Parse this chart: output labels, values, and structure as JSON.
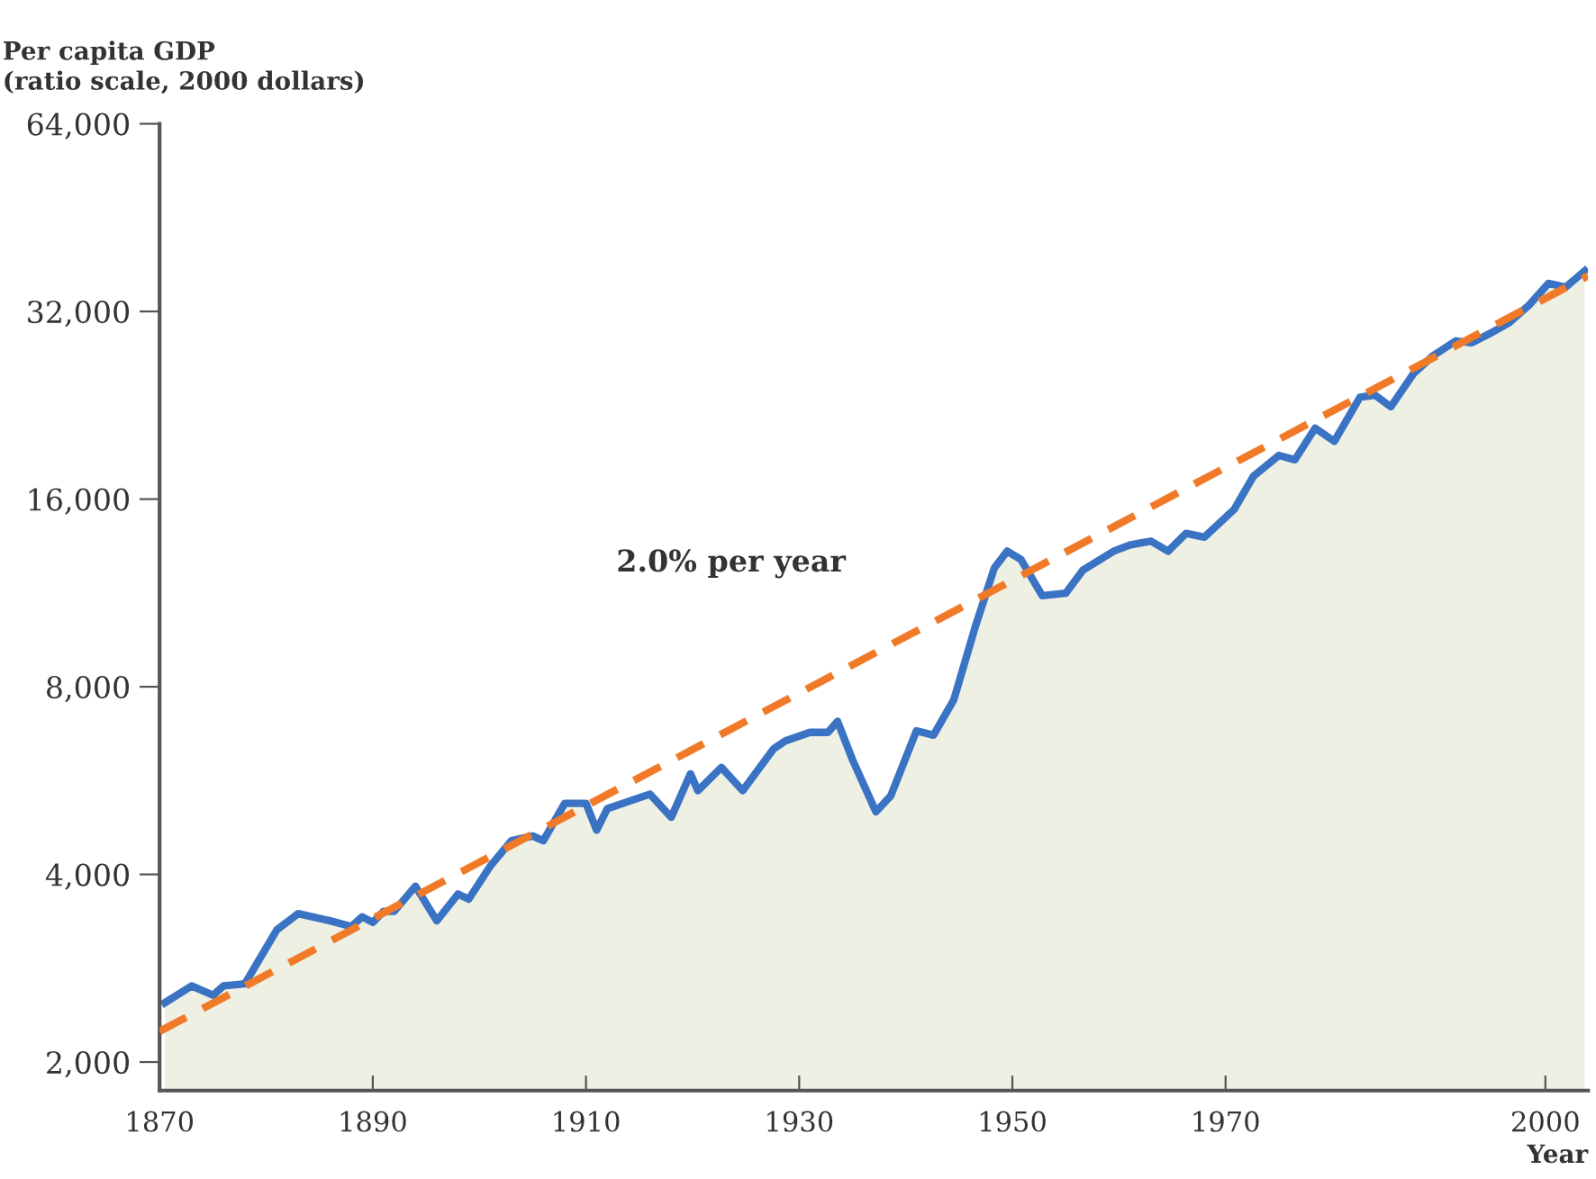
{
  "chart_data": {
    "type": "area",
    "ylabel": "Per capita GDP\n(ratio scale, 2000 dollars)",
    "xlabel": "Year",
    "log": "y",
    "xlim": [
      1870,
      2004
    ],
    "ylim": [
      1800,
      64000
    ],
    "xticks": [
      1870,
      1890,
      1910,
      1930,
      1950,
      1970,
      2000
    ],
    "yticks": [
      {
        "value": 2000,
        "label": "2,000"
      },
      {
        "value": 4000,
        "label": "4,000"
      },
      {
        "value": 8000,
        "label": "8,000"
      },
      {
        "value": 16000,
        "label": "16,000"
      },
      {
        "value": 32000,
        "label": "32,000"
      },
      {
        "value": 64000,
        "label": "64,000"
      }
    ],
    "annotations": [
      "2.0% per year"
    ],
    "series": [
      {
        "color": "#3a73c4",
        "x": [
          1870.5,
          1873,
          1875,
          1876,
          1878,
          1881,
          1883,
          1886,
          1888,
          1889,
          1890,
          1891,
          1892,
          1894,
          1896,
          1898,
          1899,
          1901,
          1903,
          1905,
          1906,
          1908,
          1910,
          1911,
          1912,
          1916,
          1918,
          1919.8,
          1920.5,
          1922.7,
          1924.7,
          1927.6,
          1928.7,
          1931,
          1932.7,
          1933.6,
          1935,
          1937.2,
          1938.6,
          1941,
          1942.6,
          1944.5,
          1946.5,
          1948.3,
          1949.5,
          1950.8,
          1952.8,
          1955,
          1956.6,
          1959.5,
          1961,
          1963,
          1964.6,
          1966.3,
          1968,
          1970.8,
          1972.6,
          1975,
          1976.5,
          1978.4,
          1980.2,
          1982.6,
          1984,
          1985.5,
          1987.6,
          1989.5,
          1991.6,
          1993.1,
          1994.8,
          1996.6,
          1998.5,
          2000.3,
          2001.9,
          2003.7
        ],
        "values": [
          2490,
          2650,
          2560,
          2650,
          2670,
          3260,
          3460,
          3370,
          3300,
          3420,
          3350,
          3490,
          3490,
          3830,
          3370,
          3720,
          3650,
          4120,
          4530,
          4610,
          4530,
          5200,
          5200,
          4710,
          5100,
          5380,
          4940,
          5800,
          5450,
          5940,
          5450,
          6360,
          6550,
          6760,
          6760,
          7040,
          6110,
          5040,
          5350,
          6800,
          6690,
          7620,
          9960,
          12400,
          13200,
          12800,
          11200,
          11300,
          12300,
          13200,
          13500,
          13700,
          13200,
          14100,
          13900,
          15400,
          17400,
          18800,
          18500,
          20800,
          19800,
          23300,
          23500,
          22500,
          25400,
          27200,
          28700,
          28500,
          29500,
          30700,
          32800,
          35500,
          35000,
          37200
        ]
      },
      {
        "type": "line",
        "color": "#f07a28",
        "line_style": "dashed",
        "x": [
          1870,
          2004
        ],
        "values": [
          2240,
          36500
        ]
      }
    ]
  }
}
